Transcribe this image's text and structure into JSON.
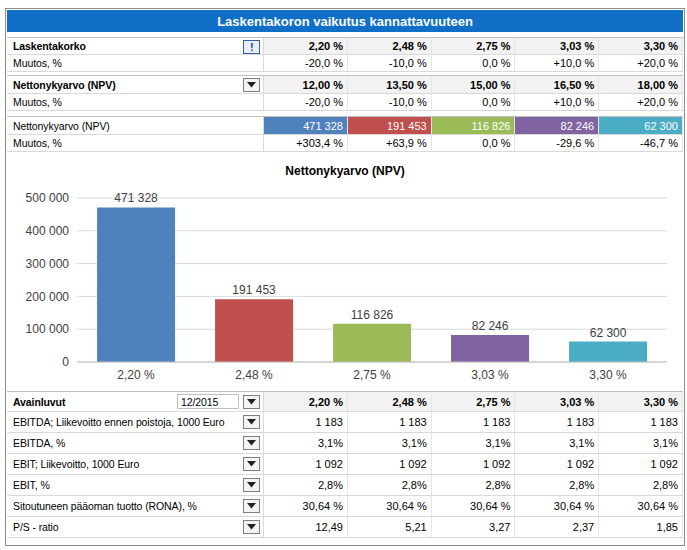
{
  "title": "Laskentakoron vaikutus kannattavuuteen",
  "sensitivity_table": {
    "rows": [
      {
        "label": "Laskentakorko",
        "button": "!",
        "values": [
          "2,20 %",
          "2,48 %",
          "2,75 %",
          "3,03 %",
          "3,30 %"
        ]
      },
      {
        "label": "Muutos, %",
        "values": [
          "-20,0 %",
          "-10,0 %",
          "0,0 %",
          "+10,0 %",
          "+20,0 %"
        ]
      },
      {
        "label": "Nettonykyarvo (NPV)",
        "values": [
          "12,00 %",
          "13,50 %",
          "15,00 %",
          "16,50 %",
          "18,00 %"
        ]
      },
      {
        "label": "Muutos, %",
        "values": [
          "-20,0 %",
          "-10,0 %",
          "0,0 %",
          "+10,0 %",
          "+20,0 %"
        ]
      },
      {
        "label": "Nettonykyarvo (NPV)",
        "values": [
          "471 328",
          "191 453",
          "116 826",
          "82 246",
          "62 300"
        ]
      },
      {
        "label": "Muutos, %",
        "values": [
          "+303,4 %",
          "+63,9 %",
          "0,0 %",
          "-29,6 %",
          "-46,7 %"
        ]
      }
    ]
  },
  "chart_data": {
    "type": "bar",
    "title": "Nettonykyarvo (NPV)",
    "categories": [
      "2,20 %",
      "2,48 %",
      "2,75 %",
      "3,03 %",
      "3,30 %"
    ],
    "values": [
      471328,
      191453,
      116826,
      82246,
      62300
    ],
    "value_labels": [
      "471 328",
      "191 453",
      "116 826",
      "82 246",
      "62 300"
    ],
    "colors": [
      "#4f81bd",
      "#c0504d",
      "#9bbb59",
      "#8064a2",
      "#4bacc6"
    ],
    "ylim": [
      0,
      500000
    ],
    "yticks": [
      0,
      {
        "value": 100000,
        "label": "100 000"
      },
      {
        "value": 200000,
        "label": "200 000"
      },
      {
        "value": 300000,
        "label": "300 000"
      },
      {
        "value": 400000,
        "label": "400 000"
      },
      {
        "value": 500000,
        "label": "500 000"
      }
    ],
    "grid": true,
    "data_labels": true
  },
  "key_figures": {
    "header": {
      "label": "Avainluvut",
      "period": "12/2015",
      "values": [
        "2,20 %",
        "2,48 %",
        "2,75 %",
        "3,03 %",
        "3,30 %"
      ]
    },
    "rows": [
      {
        "label": "EBITDA; Liikevoitto ennen poistoja, 1000 Euro",
        "values": [
          "1 183",
          "1 183",
          "1 183",
          "1 183",
          "1 183"
        ]
      },
      {
        "label": "EBITDA, %",
        "values": [
          "3,1%",
          "3,1%",
          "3,1%",
          "3,1%",
          "3,1%"
        ]
      },
      {
        "label": "EBIT; Liikevoitto, 1000 Euro",
        "values": [
          "1 092",
          "1 092",
          "1 092",
          "1 092",
          "1 092"
        ]
      },
      {
        "label": "EBIT, %",
        "values": [
          "2,8%",
          "2,8%",
          "2,8%",
          "2,8%",
          "2,8%"
        ]
      },
      {
        "label": "Sitoutuneen pääoman tuotto (RONA), %",
        "values": [
          "30,64 %",
          "30,64 %",
          "30,64 %",
          "30,64 %",
          "30,64 %"
        ]
      },
      {
        "label": "P/S - ratio",
        "values": [
          "12,49",
          "5,21",
          "3,27",
          "2,37",
          "1,85"
        ]
      }
    ]
  }
}
